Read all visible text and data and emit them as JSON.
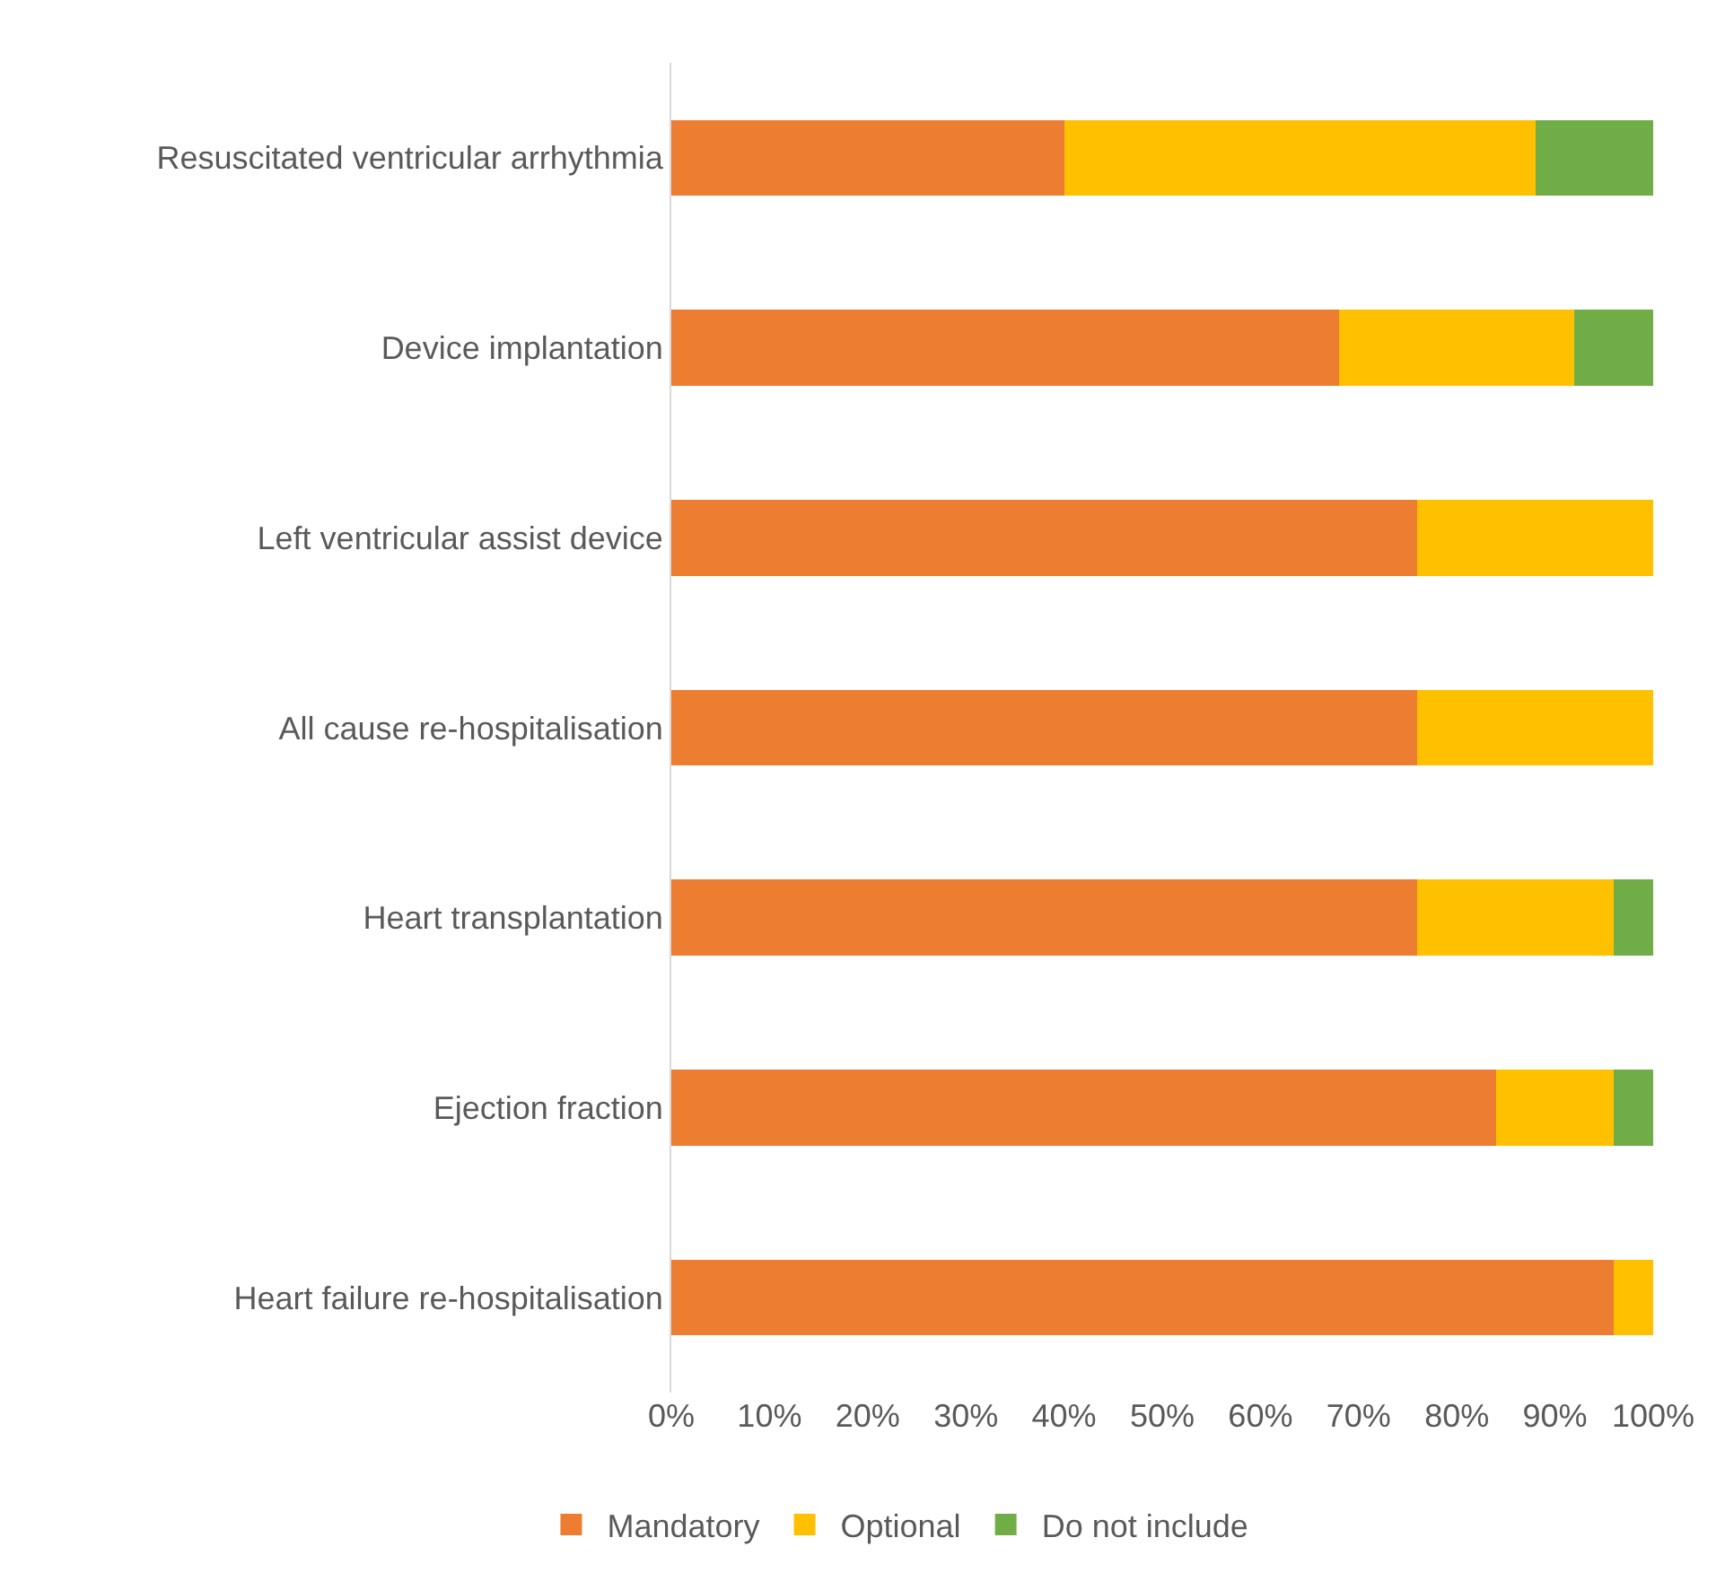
{
  "chart_data": {
    "type": "bar",
    "orientation": "horizontal",
    "stacked": true,
    "categories": [
      "Resuscitated ventricular arrhythmia",
      "Device implantation",
      "Left ventricular assist device",
      "All cause re-hospitalisation",
      "Heart transplantation",
      "Ejection fraction",
      "Heart failure re-hospitalisation"
    ],
    "series": [
      {
        "name": "Mandatory",
        "color": "#ed7d31",
        "values": [
          40,
          68,
          76,
          76,
          76,
          84,
          96
        ]
      },
      {
        "name": "Optional",
        "color": "#ffc000",
        "values": [
          48,
          24,
          24,
          24,
          20,
          12,
          4
        ]
      },
      {
        "name": "Do not include",
        "color": "#70ad47",
        "values": [
          12,
          8,
          0,
          0,
          4,
          4,
          0
        ]
      }
    ],
    "xlim": [
      0,
      100
    ],
    "xticks": [
      {
        "value": 0,
        "label": "0%"
      },
      {
        "value": 10,
        "label": "10%"
      },
      {
        "value": 20,
        "label": "20%"
      },
      {
        "value": 30,
        "label": "30%"
      },
      {
        "value": 40,
        "label": "40%"
      },
      {
        "value": 50,
        "label": "50%"
      },
      {
        "value": 60,
        "label": "60%"
      },
      {
        "value": 70,
        "label": "70%"
      },
      {
        "value": 80,
        "label": "80%"
      },
      {
        "value": 90,
        "label": "90%"
      },
      {
        "value": 100,
        "label": "100%"
      }
    ],
    "grid": false,
    "legend": "bottom"
  }
}
